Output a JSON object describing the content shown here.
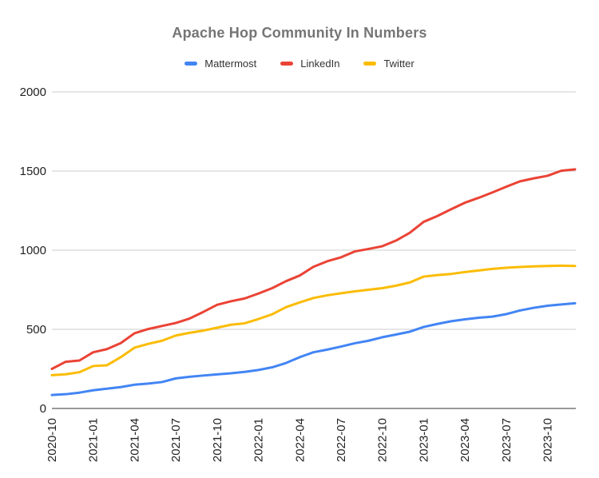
{
  "chart_data": {
    "type": "line",
    "title": "Apache Hop Community In Numbers",
    "xlabel": "",
    "ylabel": "",
    "x": [
      "2020-10",
      "2020-11",
      "2020-12",
      "2021-01",
      "2021-02",
      "2021-03",
      "2021-04",
      "2021-05",
      "2021-06",
      "2021-07",
      "2021-08",
      "2021-09",
      "2021-10",
      "2021-11",
      "2021-12",
      "2022-01",
      "2022-02",
      "2022-03",
      "2022-04",
      "2022-05",
      "2022-06",
      "2022-07",
      "2022-08",
      "2022-09",
      "2022-10",
      "2022-11",
      "2022-12",
      "2023-01",
      "2023-02",
      "2023-03",
      "2023-04",
      "2023-05",
      "2023-06",
      "2023-07",
      "2023-08",
      "2023-09",
      "2023-10",
      "2023-11",
      "2023-12"
    ],
    "x_tick_every": 3,
    "x_tick_labels": [
      "2020-10",
      "2021-01",
      "2021-04",
      "2021-07",
      "2021-10",
      "2022-01",
      "2022-04",
      "2022-07",
      "2022-10",
      "2023-01",
      "2023-04",
      "2023-07",
      "2023-10"
    ],
    "y_ticks": [
      0,
      500,
      1000,
      1500,
      2000
    ],
    "ylim": [
      0,
      2000
    ],
    "grid": true,
    "legend_position": "top",
    "series": [
      {
        "name": "Mattermost",
        "color": "#4285F4",
        "values": [
          85,
          90,
          100,
          115,
          125,
          135,
          150,
          157,
          167,
          190,
          200,
          208,
          215,
          222,
          231,
          243,
          260,
          287,
          324,
          355,
          372,
          391,
          412,
          428,
          450,
          467,
          485,
          515,
          534,
          551,
          563,
          573,
          580,
          596,
          619,
          636,
          649,
          657,
          665
        ]
      },
      {
        "name": "LinkedIn",
        "color": "#EA4335",
        "values": [
          250,
          295,
          303,
          355,
          375,
          413,
          475,
          502,
          521,
          540,
          568,
          610,
          655,
          677,
          695,
          726,
          760,
          804,
          840,
          895,
          930,
          955,
          992,
          1008,
          1025,
          1061,
          1110,
          1179,
          1216,
          1259,
          1300,
          1331,
          1365,
          1401,
          1435,
          1454,
          1470,
          1502,
          1511
        ]
      },
      {
        "name": "Twitter",
        "color": "#FBBC04",
        "values": [
          210,
          216,
          229,
          268,
          273,
          324,
          384,
          408,
          428,
          461,
          478,
          492,
          510,
          529,
          538,
          565,
          595,
          640,
          670,
          698,
          715,
          728,
          740,
          750,
          760,
          776,
          796,
          833,
          843,
          850,
          862,
          872,
          882,
          889,
          894,
          898,
          900,
          902,
          900
        ]
      }
    ]
  },
  "legend": [
    {
      "label": "Mattermost",
      "color": "#4285F4"
    },
    {
      "label": "LinkedIn",
      "color": "#EA4335"
    },
    {
      "label": "Twitter",
      "color": "#FBBC04"
    }
  ],
  "colors": {
    "background": "#ffffff",
    "title_text": "#757575",
    "legend_text": "#333333",
    "tick_text": "#222222",
    "gridline": "#cccccc",
    "baseline": "#333333",
    "series_blue": "#4285F4",
    "series_red": "#EA4335",
    "series_yellow": "#FBBC04"
  }
}
